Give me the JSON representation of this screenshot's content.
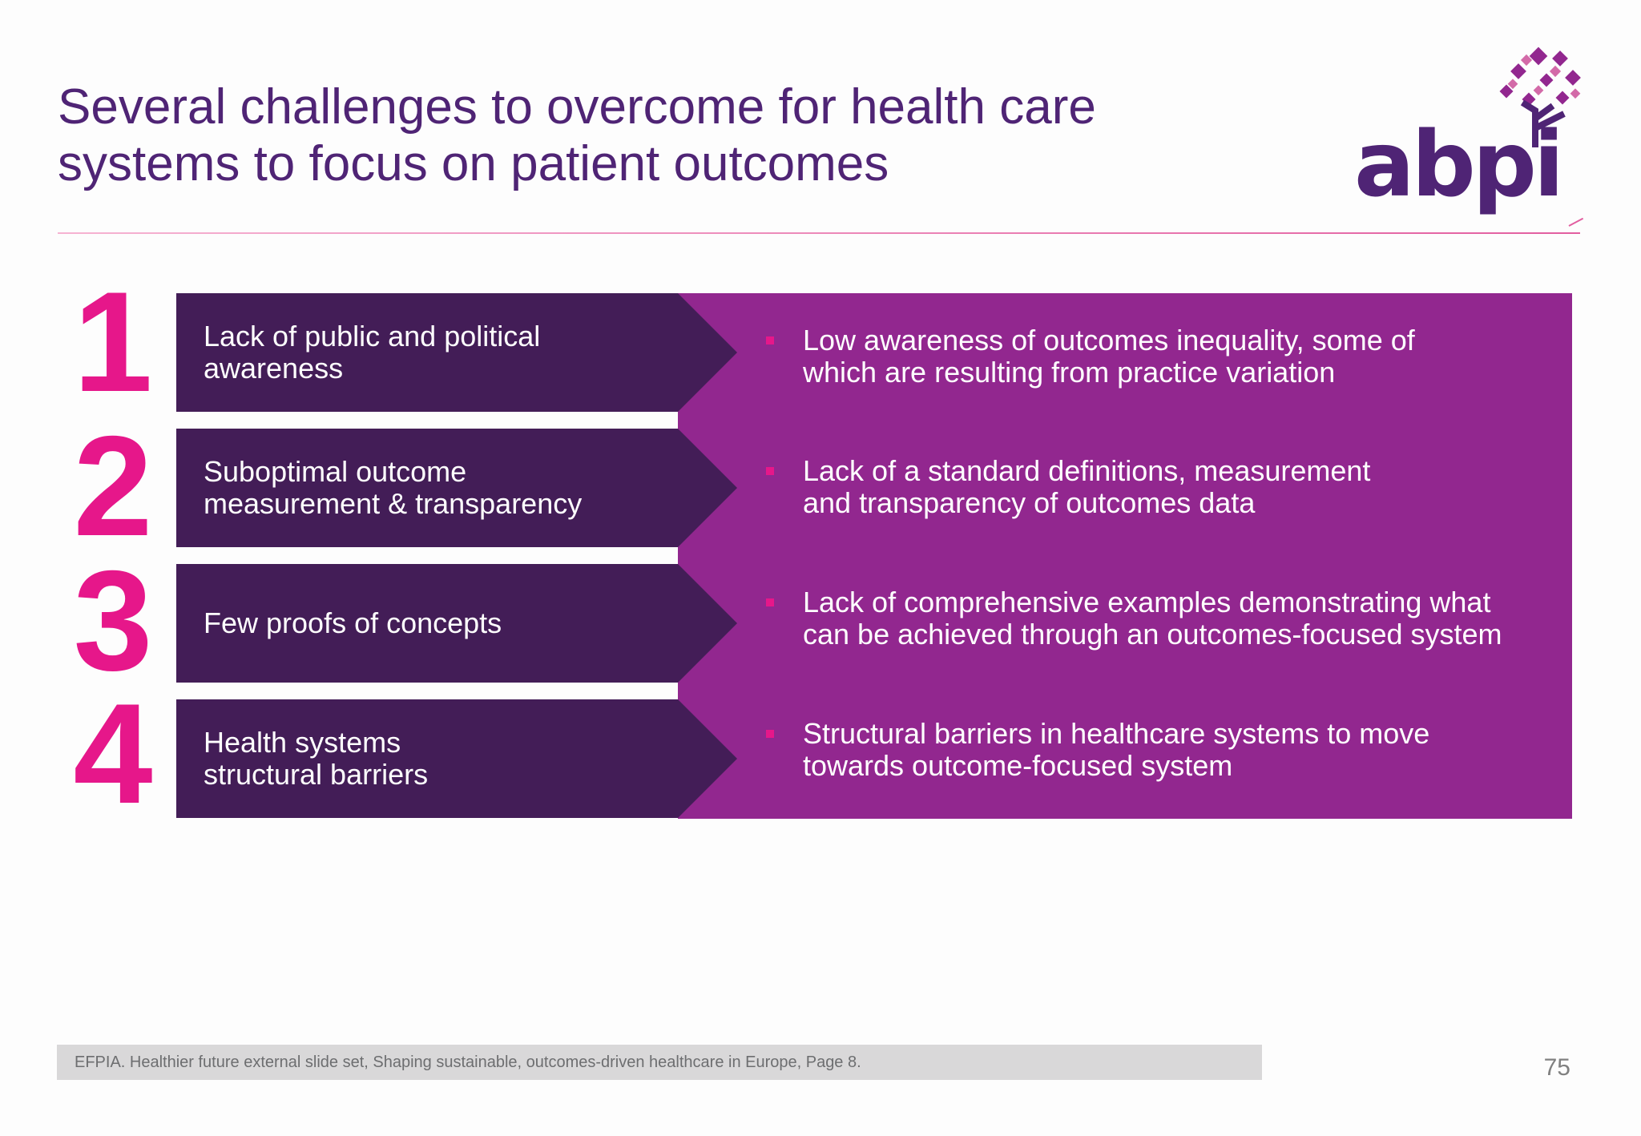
{
  "title": {
    "line1": "Several challenges to overcome for health care",
    "line2": "systems to focus on patient outcomes"
  },
  "logo": {
    "text": "abpi",
    "icon": "abpi-tree-logo"
  },
  "challenges": [
    {
      "number": "1",
      "left_lines": [
        "Lack of public and political",
        "awareness"
      ],
      "right_lines": [
        "Low awareness of outcomes inequality, some of",
        "which are resulting from practice variation"
      ]
    },
    {
      "number": "2",
      "left_lines": [
        "Suboptimal outcome",
        "measurement & transparency"
      ],
      "right_lines": [
        "Lack of a standard definitions, measurement",
        "and transparency of outcomes data"
      ]
    },
    {
      "number": "3",
      "left_lines": [
        "Few proofs of concepts"
      ],
      "right_lines": [
        "Lack of comprehensive examples demonstrating what",
        "can be achieved through an outcomes-focused system"
      ]
    },
    {
      "number": "4",
      "left_lines": [
        "Health systems",
        "structural barriers"
      ],
      "right_lines": [
        "Structural barriers in healthcare systems to move",
        "towards outcome-focused system"
      ]
    }
  ],
  "footer": {
    "source": "EFPIA. Healthier future external slide set, Shaping sustainable, outcomes-driven healthcare in Europe, Page 8.",
    "page_number": "75"
  },
  "colors": {
    "title": "#4f2475",
    "dark_box": "#431d57",
    "panel": "#92278f",
    "number_accent": "#e6178a"
  }
}
